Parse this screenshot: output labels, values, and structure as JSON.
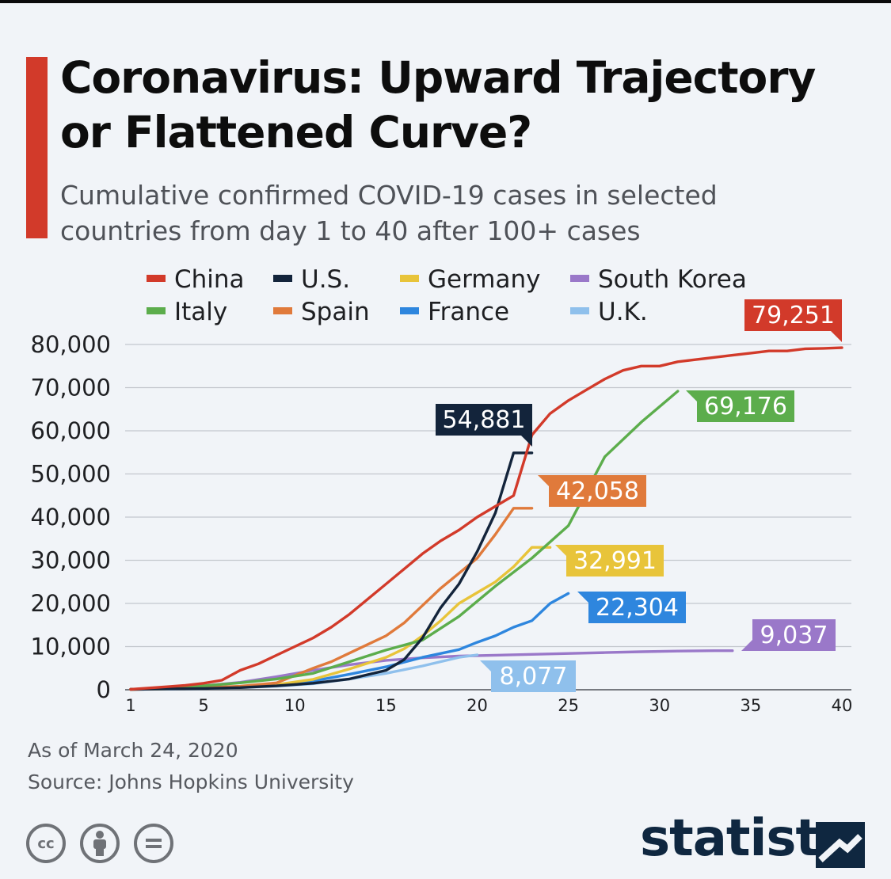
{
  "header": {
    "title_line1": "Coronavirus: Upward Trajectory",
    "title_line2": "or Flattened Curve?",
    "subtitle_line1": "Cumulative confirmed COVID-19 cases in selected",
    "subtitle_line2": "countries from day 1 to 40 after 100+ cases"
  },
  "footer": {
    "note": "As of March 24, 2020",
    "source": "Source: Johns Hopkins University",
    "brand": "statista",
    "license_icons": [
      "cc-icon",
      "attribution-icon",
      "no-derivatives-icon"
    ]
  },
  "chart_data": {
    "type": "line",
    "title": "Coronavirus: Upward Trajectory or Flattened Curve?",
    "subtitle": "Cumulative confirmed COVID-19 cases in selected countries from day 1 to 40 after 100+ cases",
    "xlabel": "",
    "ylabel": "",
    "xlim": [
      1,
      40
    ],
    "ylim": [
      0,
      80000
    ],
    "x_ticks": [
      1,
      5,
      10,
      15,
      20,
      25,
      30,
      35,
      40
    ],
    "y_ticks": [
      0,
      10000,
      20000,
      30000,
      40000,
      50000,
      60000,
      70000,
      80000
    ],
    "grid": "horizontal",
    "legend_placement": "top",
    "series": [
      {
        "name": "China",
        "color": "#d23a2a",
        "end_label": "79,251",
        "x": [
          1,
          2,
          3,
          4,
          5,
          6,
          7,
          8,
          9,
          10,
          11,
          12,
          13,
          14,
          15,
          16,
          17,
          18,
          19,
          20,
          21,
          22,
          23,
          24,
          25,
          26,
          27,
          28,
          29,
          30,
          31,
          32,
          33,
          34,
          35,
          36,
          37,
          38,
          39,
          40
        ],
        "y": [
          100,
          400,
          700,
          1000,
          1500,
          2200,
          4500,
          6000,
          8000,
          10000,
          12000,
          14500,
          17500,
          21000,
          24500,
          28000,
          31500,
          34500,
          37000,
          40000,
          42500,
          45000,
          59000,
          64000,
          67000,
          69500,
          72000,
          74000,
          75000,
          75000,
          76000,
          76500,
          77000,
          77500,
          78000,
          78500,
          78500,
          79000,
          79100,
          79251
        ]
      },
      {
        "name": "U.S.",
        "color": "#13243b",
        "end_label": "54,881",
        "x": [
          1,
          3,
          5,
          7,
          9,
          11,
          13,
          15,
          16,
          17,
          18,
          19,
          20,
          21,
          22,
          23
        ],
        "y": [
          100,
          200,
          300,
          500,
          900,
          1500,
          2500,
          4500,
          7000,
          12000,
          19000,
          24500,
          32000,
          41000,
          54881,
          54881
        ]
      },
      {
        "name": "Germany",
        "color": "#e8c43a",
        "end_label": "32,991",
        "x": [
          1,
          3,
          5,
          7,
          9,
          11,
          13,
          15,
          16,
          17,
          18,
          19,
          20,
          21,
          22,
          23,
          24
        ],
        "y": [
          100,
          200,
          400,
          700,
          1200,
          2400,
          4800,
          7500,
          9500,
          12500,
          16000,
          20000,
          22500,
          25000,
          28500,
          32991,
          32991
        ]
      },
      {
        "name": "South Korea",
        "color": "#9a78c9",
        "end_label": "9,037",
        "x": [
          1,
          3,
          5,
          7,
          9,
          11,
          13,
          15,
          17,
          19,
          21,
          23,
          25,
          27,
          29,
          31,
          33,
          34
        ],
        "y": [
          100,
          400,
          900,
          1700,
          3000,
          4500,
          5800,
          6800,
          7400,
          7800,
          8000,
          8200,
          8400,
          8600,
          8800,
          8950,
          9037,
          9037
        ]
      },
      {
        "name": "Italy",
        "color": "#5cad4c",
        "end_label": "69,176",
        "x": [
          1,
          3,
          5,
          7,
          9,
          11,
          13,
          15,
          17,
          19,
          21,
          23,
          25,
          27,
          29,
          31
        ],
        "y": [
          100,
          400,
          900,
          1600,
          2500,
          3800,
          6500,
          9200,
          11500,
          17000,
          24000,
          30500,
          38000,
          54000,
          62000,
          69176
        ]
      },
      {
        "name": "Spain",
        "color": "#e07a3b",
        "end_label": "42,058",
        "x": [
          1,
          3,
          5,
          7,
          9,
          11,
          12,
          13,
          14,
          15,
          16,
          17,
          18,
          19,
          20,
          21,
          22,
          23
        ],
        "y": [
          100,
          300,
          500,
          800,
          1600,
          5000,
          6500,
          8500,
          10500,
          12500,
          15500,
          19500,
          23500,
          27000,
          30500,
          36000,
          42058,
          42058
        ]
      },
      {
        "name": "France",
        "color": "#2e86de",
        "end_label": "22,304",
        "x": [
          1,
          3,
          5,
          7,
          9,
          11,
          13,
          15,
          17,
          19,
          20,
          21,
          22,
          23,
          24,
          25
        ],
        "y": [
          100,
          200,
          400,
          700,
          1200,
          2000,
          3600,
          5300,
          7500,
          9300,
          11000,
          12500,
          14500,
          16000,
          20000,
          22304
        ]
      },
      {
        "name": "U.K.",
        "color": "#8fc0ec",
        "end_label": "8,077",
        "x": [
          1,
          3,
          5,
          7,
          9,
          11,
          13,
          15,
          17,
          19,
          20
        ],
        "y": [
          100,
          150,
          300,
          500,
          800,
          1400,
          2500,
          3800,
          5500,
          7500,
          8077
        ]
      }
    ]
  }
}
